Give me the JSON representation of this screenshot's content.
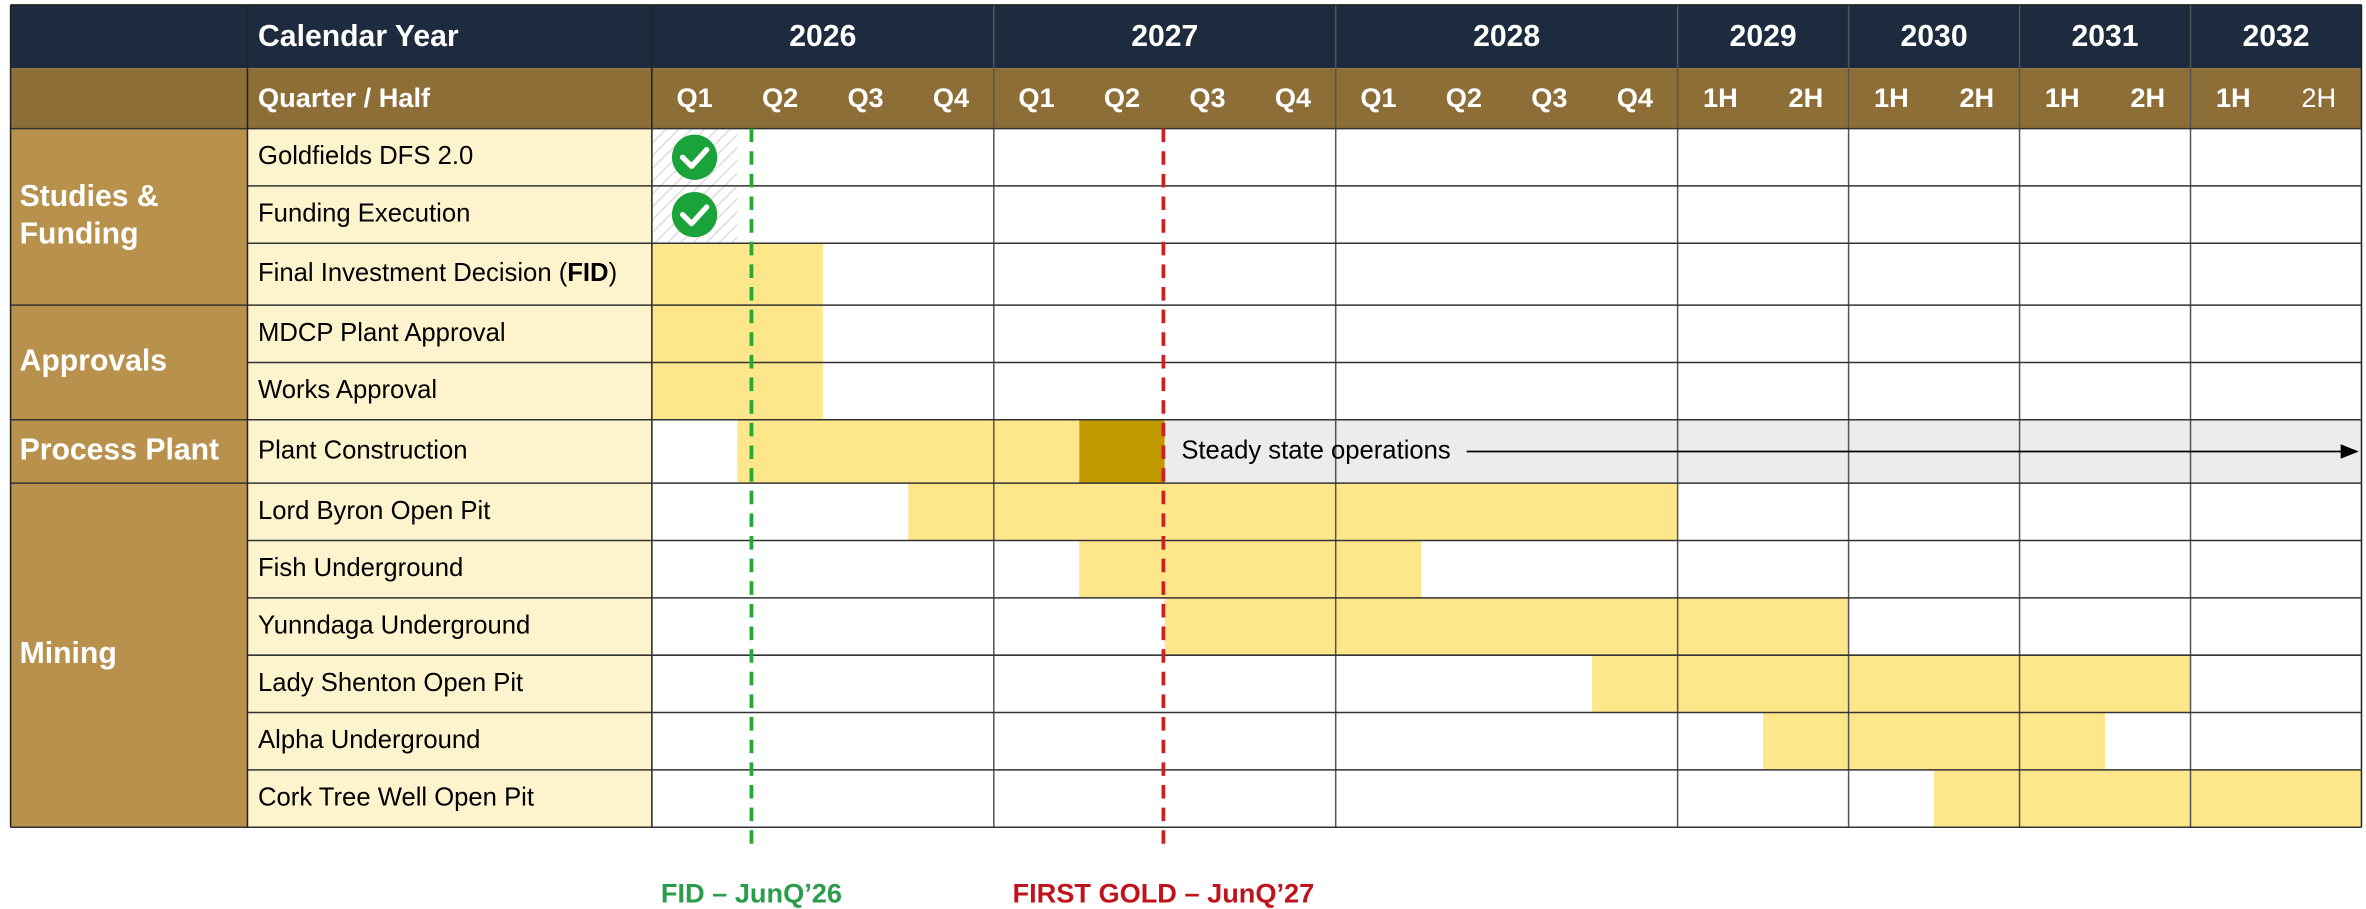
{
  "header": {
    "row_label": "Calendar Year",
    "years": [
      "2026",
      "2027",
      "2028",
      "2029",
      "2030",
      "2031",
      "2032"
    ],
    "period_label": "Quarter / Half",
    "periods": [
      "Q1",
      "Q2",
      "Q3",
      "Q4",
      "Q1",
      "Q2",
      "Q3",
      "Q4",
      "Q1",
      "Q2",
      "Q3",
      "Q4",
      "1H",
      "2H",
      "1H",
      "2H",
      "1H",
      "2H",
      "1H",
      "2H"
    ]
  },
  "groups": [
    {
      "name_lines": [
        "Studies &",
        "Funding"
      ],
      "tasks": [
        [
          "Goldfields DFS 2.0"
        ],
        [
          "Funding Execution"
        ],
        [
          "Final Investment Decision (",
          "FID",
          ")"
        ]
      ]
    },
    {
      "name_lines": [
        "Approvals"
      ],
      "tasks": [
        [
          "MDCP Plant Approval"
        ],
        [
          "Works Approval"
        ]
      ]
    },
    {
      "name_lines": [
        "Process Plant"
      ],
      "tasks": [
        [
          "Plant Construction"
        ]
      ]
    },
    {
      "name_lines": [
        "Mining"
      ],
      "tasks": [
        [
          "Lord Byron Open Pit"
        ],
        [
          "Fish Underground"
        ],
        [
          "Yunndaga Underground"
        ],
        [
          "Lady Shenton Open Pit"
        ],
        [
          "Alpha Underground"
        ],
        [
          "Cork Tree Well Open Pit"
        ]
      ]
    }
  ],
  "steady_state": "Steady state operations",
  "milestones": [
    "FID – JunQ’26",
    "FIRST GOLD – JunQ’27"
  ]
}
